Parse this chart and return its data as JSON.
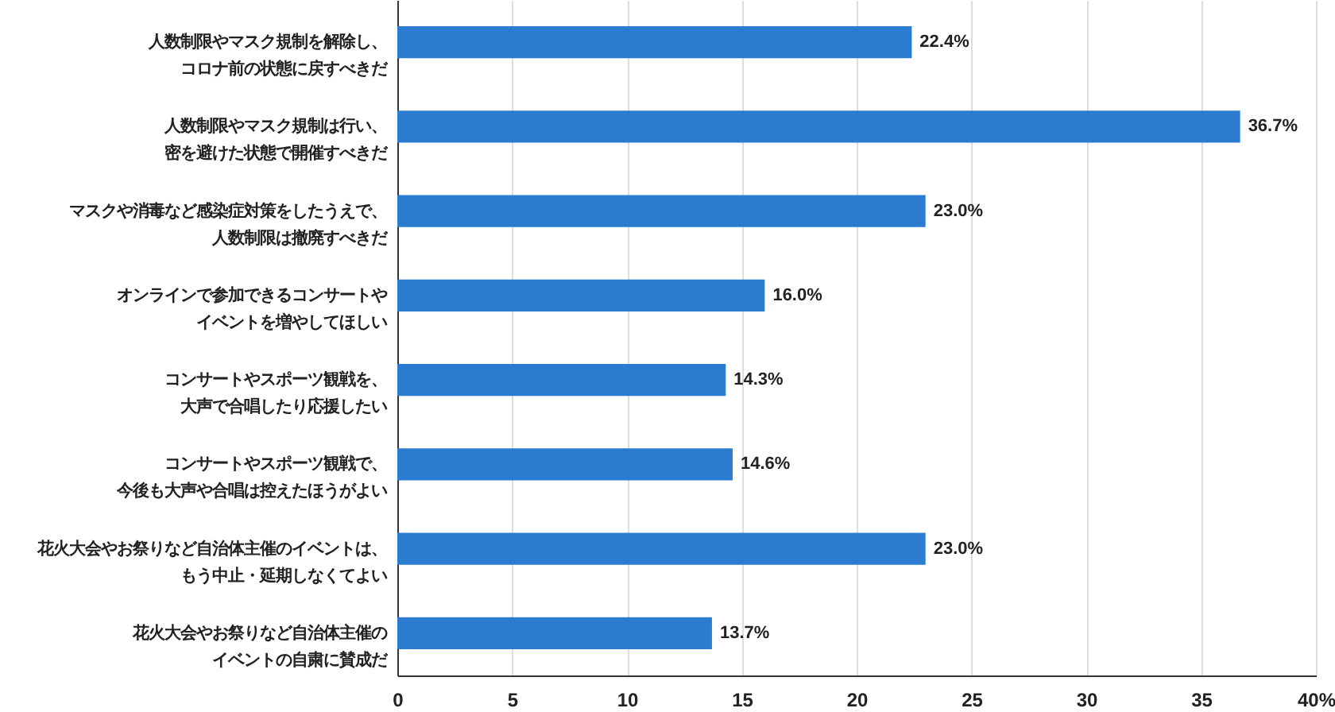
{
  "chart_data": {
    "type": "bar",
    "orientation": "horizontal",
    "categories": [
      "人数制限やマスク規制を解除し、コロナ前の状態に戻すべきだ",
      "人数制限やマスク規制は行い、密を避けた状態で開催すべきだ",
      "マスクや消毒など感染症対策をしたうえで、人数制限は撤廃すべきだ",
      "オンラインで参加できるコンサートやイベントを増やしてほしい",
      "コンサートやスポーツ観戦を、大声で合唱したり応援したい",
      "コンサートやスポーツ観戦で、今後も大声や合唱は控えたほうがよい",
      "花火大会やお祭りなど自治体主催のイベントは、もう中止・延期しなくてよい",
      "花火大会やお祭りなど自治体主催のイベントの自粛に賛成だ"
    ],
    "values": [
      22.4,
      36.7,
      23.0,
      16.0,
      14.3,
      14.6,
      23.0,
      13.7
    ],
    "value_labels": [
      "22.4%",
      "36.7%",
      "23.0%",
      "16.0%",
      "14.3%",
      "14.6%",
      "23.0%",
      "13.7%"
    ],
    "color": "#2b7bd0",
    "xlim": [
      0,
      40
    ],
    "xticks": [
      0,
      5,
      10,
      15,
      20,
      25,
      30,
      35,
      {
        "value": 40,
        "label": "40%"
      }
    ],
    "grid": "x"
  }
}
